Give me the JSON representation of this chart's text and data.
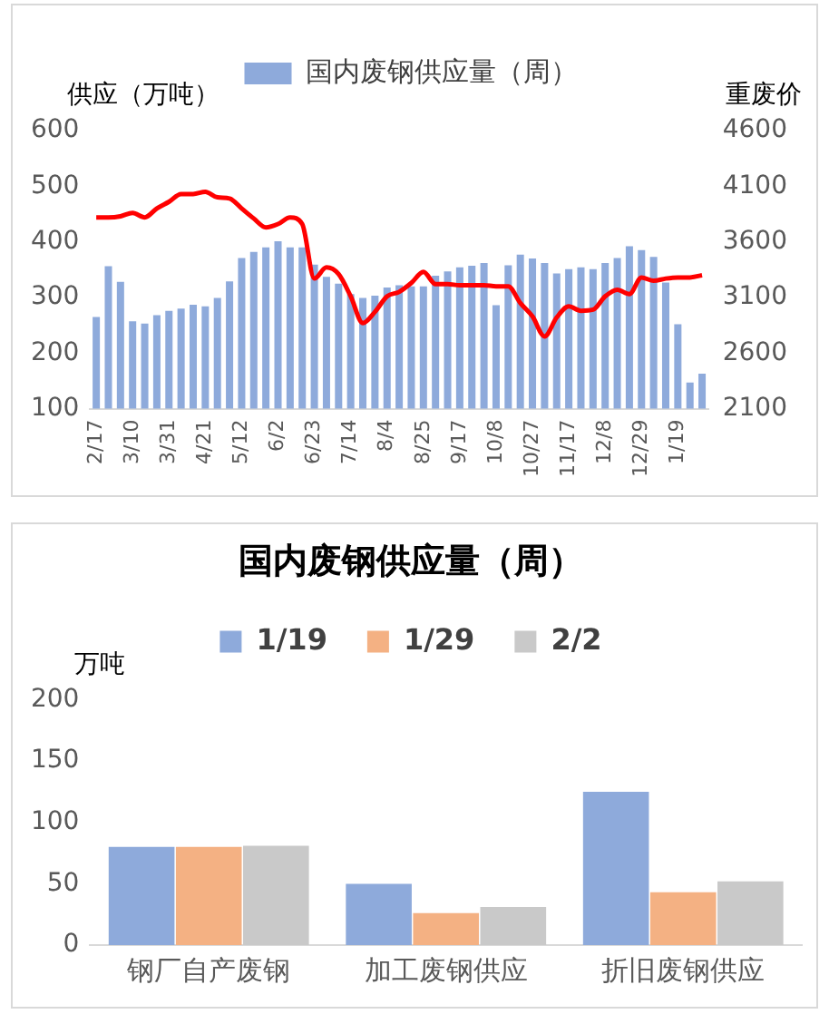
{
  "chart_data": [
    {
      "type": "bar",
      "ylabel": "供应（万吨）",
      "y2label": "重废价",
      "categories": [
        "2/17",
        null,
        null,
        "3/10",
        null,
        null,
        "3/31",
        null,
        null,
        "4/21",
        null,
        null,
        "5/12",
        null,
        null,
        "6/2",
        null,
        null,
        "6/23",
        null,
        null,
        "7/14",
        null,
        null,
        "8/4",
        null,
        null,
        "8/25",
        null,
        null,
        "9/17",
        null,
        null,
        "10/8",
        null,
        null,
        "10/27",
        null,
        null,
        "11/17",
        null,
        null,
        "12/8",
        null,
        null,
        "12/29",
        null,
        null,
        "1/19",
        null,
        null
      ],
      "series": [
        {
          "name": "国内废钢供应量（周）",
          "type": "bar",
          "color": "#8eaadb",
          "values": [
            265,
            356,
            328,
            257,
            253,
            268,
            276,
            280,
            287,
            284,
            299,
            329,
            371,
            382,
            390,
            401,
            390,
            390,
            359,
            337,
            325,
            306,
            299,
            303,
            318,
            322,
            320,
            320,
            339,
            347,
            354,
            357,
            362,
            286,
            358,
            377,
            370,
            362,
            343,
            351,
            354,
            351,
            362,
            371,
            392,
            385,
            373,
            327,
            252,
            147,
            163
          ]
        },
        {
          "type": "line",
          "axis": "y2",
          "color": "#ff0000",
          "values": [
            3820,
            3820,
            3830,
            3860,
            3820,
            3900,
            3960,
            4030,
            4030,
            4050,
            4000,
            3990,
            3900,
            3810,
            3730,
            3760,
            3820,
            3760,
            3270,
            3370,
            3310,
            3110,
            2870,
            2970,
            3110,
            3150,
            3230,
            3330,
            3220,
            3220,
            3210,
            3210,
            3210,
            3200,
            3200,
            3050,
            2930,
            2750,
            2920,
            3020,
            2980,
            2990,
            3110,
            3170,
            3130,
            3280,
            3250,
            3270,
            3280,
            3280,
            3300
          ]
        }
      ],
      "ylim": [
        100,
        600
      ],
      "yticks": [
        100,
        200,
        300,
        400,
        500,
        600
      ],
      "y2lim": [
        2100,
        4600
      ],
      "y2ticks": [
        2100,
        2600,
        3100,
        3600,
        4100,
        4600
      ],
      "legend": "top",
      "grid": false
    },
    {
      "type": "bar",
      "title": "国内废钢供应量（周）",
      "ylabel": "万吨",
      "categories": [
        "钢厂自产废钢",
        "加工废钢供应",
        "折旧废钢供应"
      ],
      "series": [
        {
          "name": "1/19",
          "color": "#8eaadb",
          "values": [
            80,
            50,
            125
          ]
        },
        {
          "name": "1/29",
          "color": "#f4b183",
          "values": [
            80,
            26,
            43
          ]
        },
        {
          "name": "2/2",
          "color": "#c9c9c9",
          "values": [
            81,
            31,
            52
          ]
        }
      ],
      "ylim": [
        0,
        200
      ],
      "yticks": [
        0,
        50,
        100,
        150,
        200
      ],
      "legend": "top",
      "grid": false
    }
  ]
}
